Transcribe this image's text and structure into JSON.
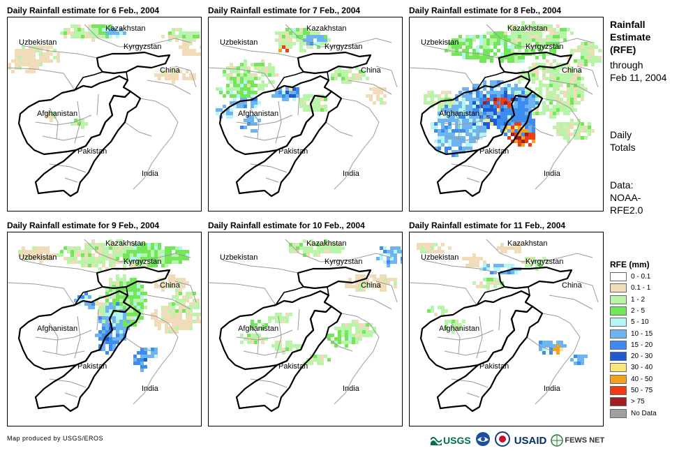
{
  "panels": [
    {
      "title": "Daily Rainfall estimate for 6 Feb., 2004"
    },
    {
      "title": "Daily Rainfall estimate for 7 Feb., 2004"
    },
    {
      "title": "Daily Rainfall estimate for 8 Feb., 2004"
    },
    {
      "title": "Daily Rainfall estimate for 9 Feb., 2004"
    },
    {
      "title": "Daily Rainfall estimate for 10 Feb., 2004"
    },
    {
      "title": "Daily Rainfall estimate for 11 Feb., 2004"
    }
  ],
  "countries": {
    "kazakhstan": "Kazakhstan",
    "kyrgyzstan": "Kyrgyzstan",
    "uzbekistan": "Uzbekistan",
    "china": "China",
    "afghanistan": "Afghanistan",
    "pakistan": "Pakistan",
    "india": "India"
  },
  "side": {
    "heading": [
      "Rainfall",
      "Estimate",
      "(RFE)"
    ],
    "through": [
      "through",
      "Feb 11, 2004"
    ],
    "daily": [
      "Daily",
      "Totals"
    ],
    "data": [
      "Data:",
      "NOAA-",
      "RFE2.0"
    ]
  },
  "legend": {
    "title": "RFE (mm)",
    "items": [
      {
        "label": "0 - 0.1",
        "color": "#ffffff"
      },
      {
        "label": "0.1 - 1",
        "color": "#f0dcb8"
      },
      {
        "label": "1 - 2",
        "color": "#b8f5a8"
      },
      {
        "label": "2 - 5",
        "color": "#73e65a"
      },
      {
        "label": "5 - 10",
        "color": "#b4f5f5"
      },
      {
        "label": "10 - 15",
        "color": "#6eb4f0"
      },
      {
        "label": "15 - 20",
        "color": "#3c8cf0"
      },
      {
        "label": "20 - 30",
        "color": "#1e5ad2"
      },
      {
        "label": "30 - 40",
        "color": "#fae678"
      },
      {
        "label": "40 - 50",
        "color": "#f5a01e"
      },
      {
        "label": "50 - 75",
        "color": "#f03c14"
      },
      {
        "label": "> 75",
        "color": "#a01e1e"
      },
      {
        "label": "No Data",
        "color": "#a0a0a0"
      }
    ]
  },
  "footer": {
    "credit": "Map produced by USGS/EROS",
    "logo_usgs": "USGS",
    "logo_usaid": "USAID",
    "logo_fews": "FEWS NET"
  }
}
